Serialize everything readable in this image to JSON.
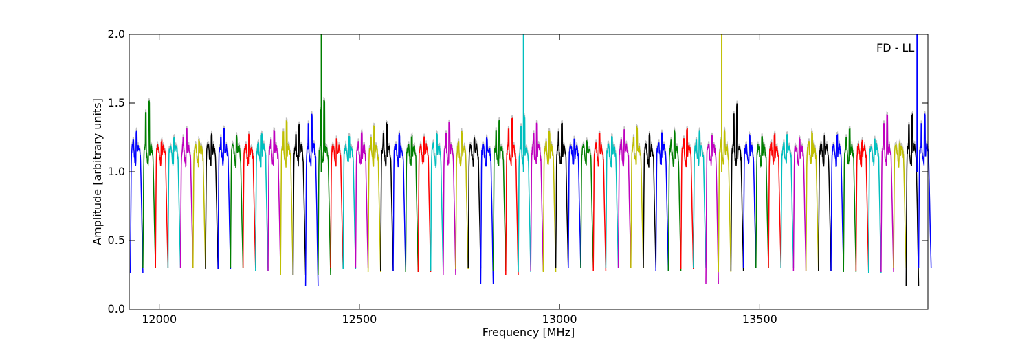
{
  "chart_data": {
    "type": "line",
    "title": "",
    "annotation": "FD - LL",
    "xlabel": "Frequency [MHz]",
    "ylabel": "Amplitude [arbitrary units]",
    "xlim": [
      11925,
      13920
    ],
    "ylim": [
      0.0,
      2.0
    ],
    "xticks": [
      12000,
      12500,
      13000,
      13500
    ],
    "xtick_labels": [
      "12000",
      "12500",
      "13000",
      "13500"
    ],
    "yticks": [
      0.0,
      0.5,
      1.0,
      1.5,
      2.0
    ],
    "ytick_labels": [
      "0.0",
      "0.5",
      "1.0",
      "1.5",
      "2.0"
    ],
    "grid": false,
    "legend": "none",
    "background_series_color": "#bfbfbf",
    "colors": [
      "#0000ff",
      "#007f00",
      "#ff0000",
      "#00bfbf",
      "#bf00bf",
      "#bfbf00",
      "#000000"
    ],
    "channel_start_mhz": 11928,
    "channel_width_mhz": 31.25,
    "channel_count": 64,
    "channel_peaks": [
      1.31,
      1.51,
      1.24,
      1.26,
      1.33,
      1.25,
      1.28,
      1.33,
      1.27,
      1.28,
      1.29,
      1.31,
      1.37,
      1.35,
      1.43,
      1.53,
      1.25,
      1.26,
      1.3,
      1.33,
      1.36,
      1.28,
      1.28,
      1.26,
      1.29,
      1.36,
      1.3,
      1.25,
      1.26,
      1.38,
      1.39,
      1.41,
      1.36,
      1.3,
      1.37,
      1.25,
      1.24,
      1.29,
      1.26,
      1.31,
      1.33,
      1.28,
      1.29,
      1.31,
      1.32,
      1.31,
      1.28,
      1.31,
      1.5,
      1.28,
      1.26,
      1.29,
      1.29,
      1.25,
      1.3,
      1.28,
      1.27,
      1.33,
      1.24,
      1.25,
      1.43,
      1.22,
      1.42,
      1.43
    ],
    "channel_troughs": [
      0.26,
      0.3,
      0.3,
      0.3,
      0.3,
      0.3,
      0.29,
      0.29,
      0.3,
      0.3,
      0.28,
      0.28,
      0.25,
      0.25,
      0.17,
      0.25,
      0.3,
      0.29,
      0.3,
      0.27,
      0.28,
      0.28,
      0.27,
      0.27,
      0.28,
      0.25,
      0.29,
      0.3,
      0.18,
      0.28,
      0.25,
      0.27,
      0.28,
      0.27,
      0.3,
      0.3,
      0.3,
      0.28,
      0.3,
      0.3,
      0.3,
      0.3,
      0.28,
      0.28,
      0.29,
      0.3,
      0.18,
      0.27,
      0.28,
      0.3,
      0.3,
      0.3,
      0.3,
      0.28,
      0.28,
      0.28,
      0.28,
      0.27,
      0.28,
      0.26,
      0.27,
      0.3,
      0.17,
      0.3
    ],
    "spikes": [
      {
        "x": 12405,
        "y": 2.0,
        "color": "#007f00"
      },
      {
        "x": 12910,
        "y": 2.0,
        "color": "#00bfbf"
      },
      {
        "x": 13405,
        "y": 2.0,
        "color": "#bfbf00"
      },
      {
        "x": 13893,
        "y": 2.0,
        "color": "#0000ff"
      }
    ]
  }
}
